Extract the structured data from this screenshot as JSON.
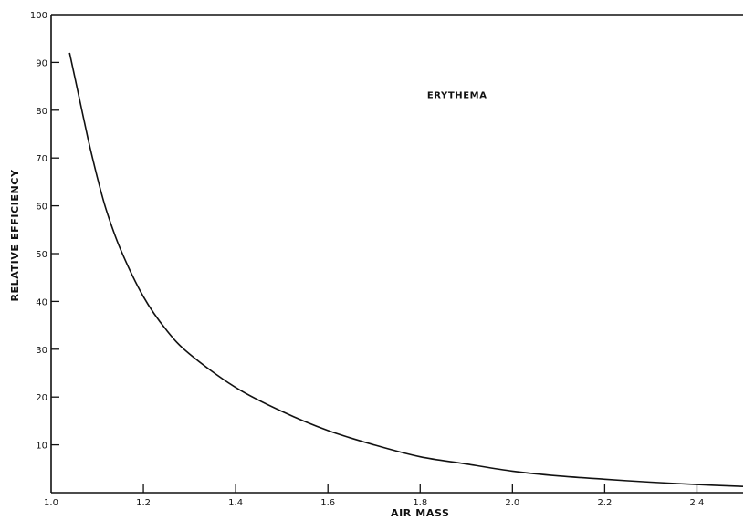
{
  "chart_data": {
    "type": "line",
    "title": "",
    "annotation": "ERYTHEMA",
    "xlabel": "AIR MASS",
    "ylabel": "RELATIVE EFFICIENCY",
    "xlim": [
      1.0,
      2.5
    ],
    "ylim": [
      0,
      100
    ],
    "grid": false,
    "x_ticks": [
      1.0,
      1.2,
      1.4,
      1.6,
      1.8,
      2.0,
      2.2,
      2.4
    ],
    "x_tick_labels": [
      "1.0",
      "1.2",
      "1.4",
      "1.6",
      "1.8",
      "2.0",
      "2.2",
      "2.4"
    ],
    "y_ticks": [
      10,
      20,
      30,
      40,
      50,
      60,
      70,
      80,
      90,
      100
    ],
    "y_tick_labels": [
      "10",
      "20",
      "30",
      "40",
      "50",
      "60",
      "70",
      "80",
      "90",
      "100"
    ],
    "series": [
      {
        "x": [
          1.04,
          1.06,
          1.08,
          1.1,
          1.12,
          1.15,
          1.2,
          1.25,
          1.3,
          1.4,
          1.5,
          1.6,
          1.7,
          1.8,
          1.9,
          2.0,
          2.1,
          2.2,
          2.3,
          2.4,
          2.5
        ],
        "y": [
          92,
          83,
          74,
          66,
          59,
          51,
          41,
          34,
          29,
          22,
          17,
          13,
          10,
          7.5,
          6,
          4.5,
          3.5,
          2.8,
          2.2,
          1.7,
          1.3
        ]
      }
    ]
  }
}
